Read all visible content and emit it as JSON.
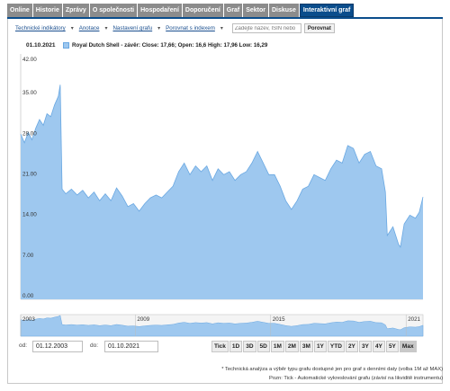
{
  "tabs": [
    {
      "label": "Online"
    },
    {
      "label": "Historie"
    },
    {
      "label": "Zprávy"
    },
    {
      "label": "O společnosti"
    },
    {
      "label": "Hospodaření"
    },
    {
      "label": "Doporučení"
    },
    {
      "label": "Graf"
    },
    {
      "label": "Sektor"
    },
    {
      "label": "Diskuse"
    },
    {
      "label": "Interaktivní graf"
    }
  ],
  "active_tab": "Interaktivní graf",
  "toolbar": {
    "technical_indicators": "Technické indikátory",
    "annotations": "Anotace",
    "chart_settings": "Nastavení grafu",
    "compare_index": "Porovnat s indexem",
    "compare_placeholder": "Zadejte název, ISIN nebo",
    "compare_button": "Porovnat"
  },
  "legend": {
    "date": "01.10.2021",
    "series_text": "Royal Dutch Shell - závěr: Close: 17,66; Open: 16,6 High: 17,96 Low: 16,29"
  },
  "colors": {
    "area_fill": "#9ec8ef",
    "area_line": "#6aa8e2",
    "active_tab": "#0a4d8c",
    "tab": "#8c8c8c"
  },
  "chart_data": {
    "type": "area",
    "series": [
      {
        "name": "Royal Dutch Shell",
        "points": [
          [
            "2003-12",
            28.5
          ],
          [
            "2004-02",
            27.0
          ],
          [
            "2004-04",
            28.8
          ],
          [
            "2004-06",
            27.5
          ],
          [
            "2004-08",
            29.5
          ],
          [
            "2004-10",
            31.0
          ],
          [
            "2004-12",
            30.0
          ],
          [
            "2005-02",
            32.0
          ],
          [
            "2005-04",
            31.5
          ],
          [
            "2005-06",
            33.5
          ],
          [
            "2005-08",
            35.0
          ],
          [
            "2005-09",
            37.0
          ],
          [
            "2005-10",
            19.0
          ],
          [
            "2005-12",
            18.2
          ],
          [
            "2006-03",
            19.0
          ],
          [
            "2006-06",
            18.0
          ],
          [
            "2006-09",
            18.8
          ],
          [
            "2006-12",
            17.5
          ],
          [
            "2007-03",
            18.5
          ],
          [
            "2007-06",
            17.0
          ],
          [
            "2007-09",
            18.2
          ],
          [
            "2007-12",
            17.0
          ],
          [
            "2008-03",
            19.2
          ],
          [
            "2008-06",
            17.8
          ],
          [
            "2008-09",
            16.0
          ],
          [
            "2008-12",
            16.5
          ],
          [
            "2009-03",
            15.2
          ],
          [
            "2009-06",
            16.5
          ],
          [
            "2009-09",
            17.5
          ],
          [
            "2009-12",
            18.0
          ],
          [
            "2010-03",
            17.5
          ],
          [
            "2010-06",
            18.5
          ],
          [
            "2010-09",
            19.5
          ],
          [
            "2010-12",
            22.0
          ],
          [
            "2011-03",
            23.5
          ],
          [
            "2011-06",
            21.5
          ],
          [
            "2011-09",
            23.0
          ],
          [
            "2011-12",
            22.0
          ],
          [
            "2012-03",
            23.0
          ],
          [
            "2012-06",
            20.5
          ],
          [
            "2012-09",
            22.5
          ],
          [
            "2012-12",
            21.5
          ],
          [
            "2013-03",
            22.0
          ],
          [
            "2013-06",
            20.5
          ],
          [
            "2013-09",
            21.5
          ],
          [
            "2013-12",
            22.0
          ],
          [
            "2014-03",
            23.5
          ],
          [
            "2014-06",
            25.5
          ],
          [
            "2014-09",
            23.5
          ],
          [
            "2014-12",
            21.5
          ],
          [
            "2015-03",
            21.5
          ],
          [
            "2015-06",
            19.5
          ],
          [
            "2015-09",
            17.0
          ],
          [
            "2015-12",
            15.5
          ],
          [
            "2016-03",
            17.0
          ],
          [
            "2016-06",
            19.0
          ],
          [
            "2016-09",
            19.5
          ],
          [
            "2016-12",
            21.5
          ],
          [
            "2017-03",
            21.0
          ],
          [
            "2017-06",
            20.5
          ],
          [
            "2017-09",
            22.5
          ],
          [
            "2017-12",
            24.0
          ],
          [
            "2018-03",
            23.5
          ],
          [
            "2018-06",
            26.5
          ],
          [
            "2018-09",
            26.0
          ],
          [
            "2018-12",
            23.5
          ],
          [
            "2019-03",
            25.0
          ],
          [
            "2019-06",
            25.5
          ],
          [
            "2019-09",
            23.0
          ],
          [
            "2019-12",
            22.5
          ],
          [
            "2020-02",
            18.5
          ],
          [
            "2020-03",
            11.0
          ],
          [
            "2020-06",
            12.5
          ],
          [
            "2020-09",
            9.5
          ],
          [
            "2020-10",
            9.0
          ],
          [
            "2020-12",
            13.0
          ],
          [
            "2021-03",
            14.5
          ],
          [
            "2021-06",
            14.0
          ],
          [
            "2021-08",
            15.0
          ],
          [
            "2021-10",
            17.66
          ]
        ]
      }
    ],
    "y_ticks": [
      "42.00",
      "35.00",
      "28.00",
      "21.00",
      "14.00",
      "7.00",
      "0.00"
    ],
    "ylim": [
      0,
      42
    ],
    "xlim": [
      "2003-12",
      "2021-10"
    ],
    "navigator_labels": [
      "2003",
      "2009",
      "2015",
      "2021"
    ],
    "grid": false
  },
  "range": {
    "from_label": "od:",
    "from_value": "01.12.2003",
    "to_label": "do:",
    "to_value": "01.10.2021",
    "buttons": [
      "Tick",
      "1D",
      "3D",
      "5D",
      "1M",
      "2M",
      "3M",
      "1Y",
      "YTD",
      "2Y",
      "3Y",
      "4Y",
      "5Y",
      "Max"
    ],
    "active": "Max"
  },
  "notes": {
    "line1": "* Technická analýza a výběr typu grafu dostupné jen pro graf s denními daty (volba 1M až MAX)",
    "line2": "Pozn: Tick - Automatické vykreslování grafu (závisí na likviditě instrumentu)"
  }
}
